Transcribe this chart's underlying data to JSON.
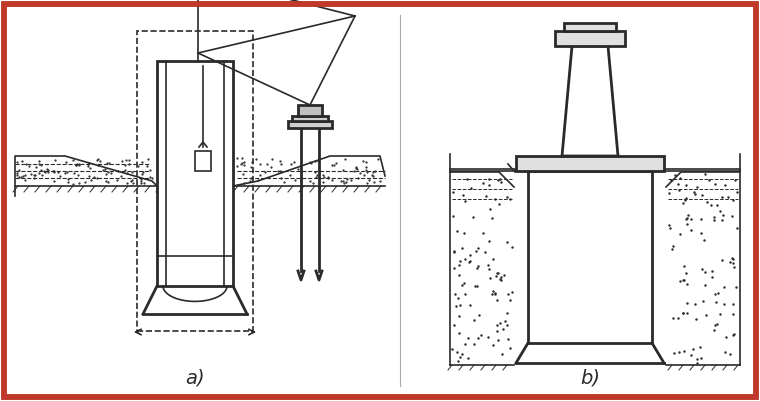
{
  "bg_color": "#ffffff",
  "border_color": "#c0392b",
  "border_lw": 4,
  "line_color": "#2a2a2a",
  "lw": 1.2,
  "lw2": 2.0,
  "label_a": "a)",
  "label_b": "b)",
  "fig_width": 7.6,
  "fig_height": 4.01,
  "dpi": 100
}
